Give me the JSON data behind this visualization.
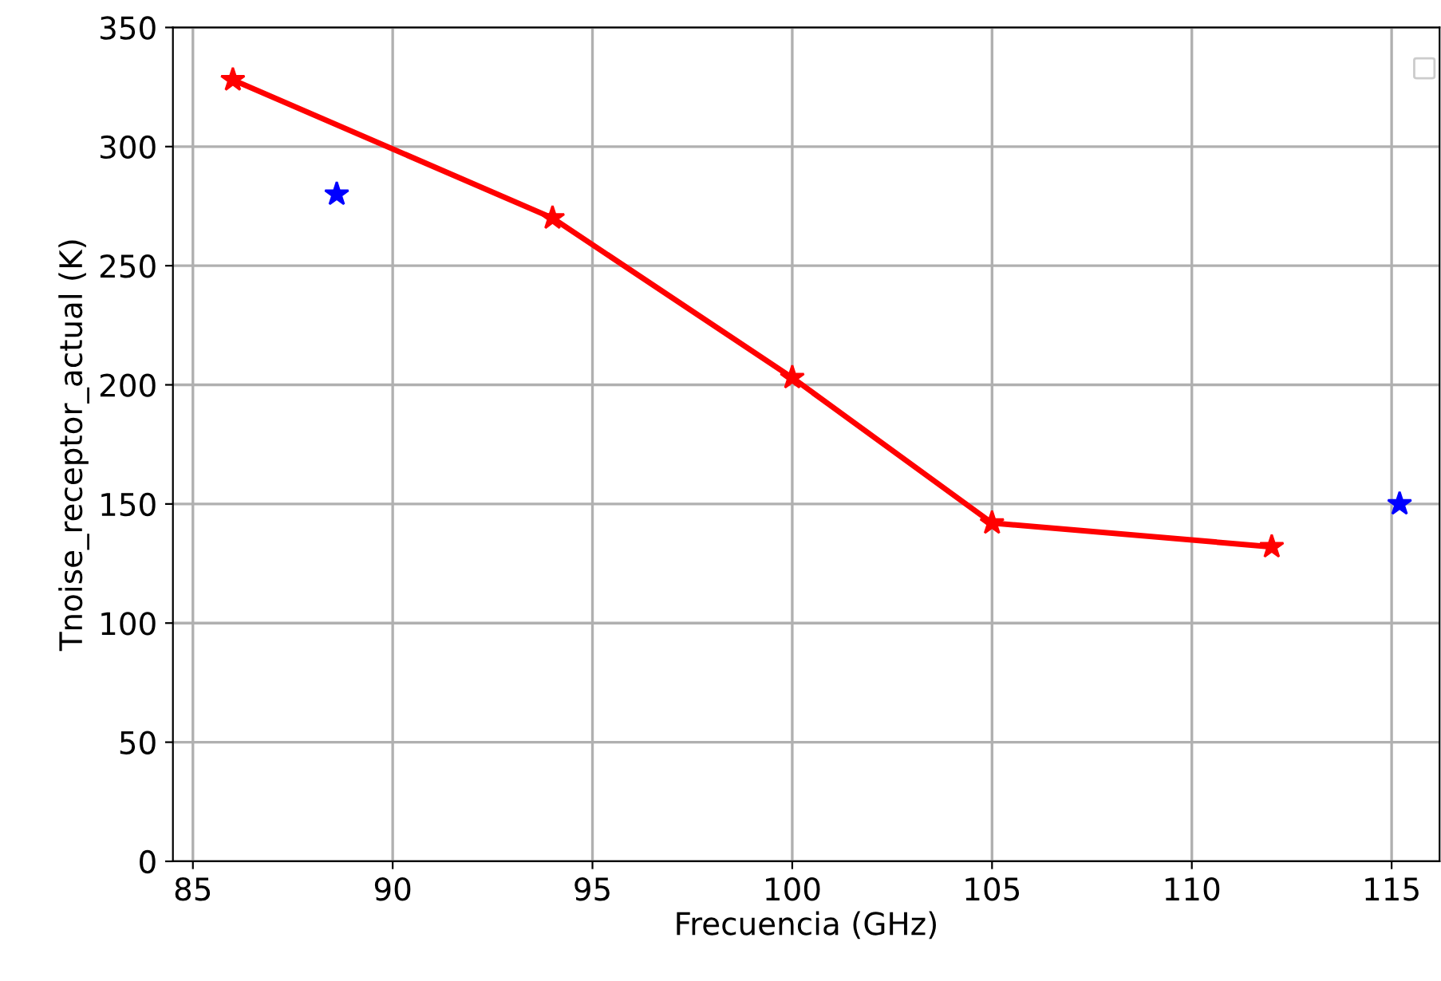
{
  "chart_data": {
    "type": "line",
    "xlabel": "Frecuencia (GHz)",
    "ylabel": "Tnoise_receptor_actual (K)",
    "series": [
      {
        "color": "#ff0000",
        "x": [
          86,
          94,
          100,
          105,
          112
        ],
        "values": [
          328,
          270,
          203,
          142,
          132
        ],
        "marker": "star",
        "line_style": "solid"
      },
      {
        "type": "scatter",
        "color": "#0000ff",
        "x": [
          88.6,
          115.2
        ],
        "values": [
          280,
          150
        ],
        "marker": "star"
      }
    ],
    "xlim": [
      84.5,
      116.2
    ],
    "xticks": [
      85,
      90,
      95,
      100,
      105,
      110,
      115
    ],
    "ylim": [
      0,
      350
    ],
    "yticks": [
      0,
      50,
      100,
      150,
      200,
      250,
      300,
      350
    ],
    "grid": true
  }
}
